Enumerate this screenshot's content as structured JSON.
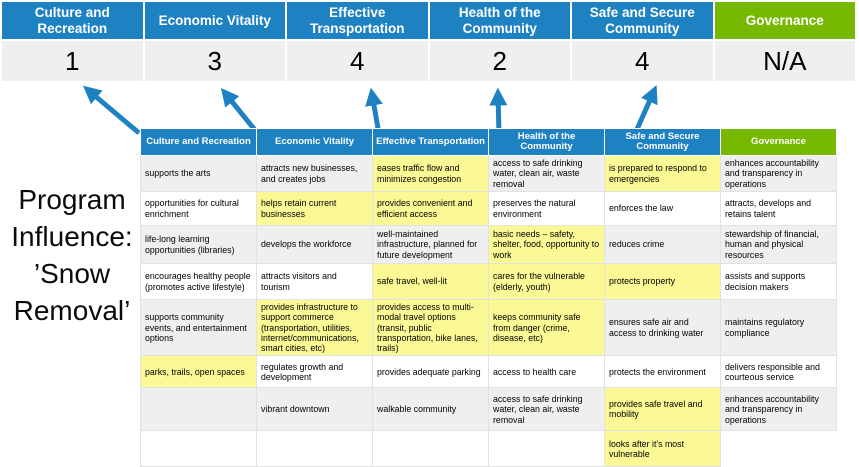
{
  "colors": {
    "header_blue": "#1E82C2",
    "header_green": "#76B900",
    "score_bg": "#EEEFEF",
    "band_gray": "#EFEFEF",
    "highlight_yellow": "#FBF995",
    "arrow_blue": "#1E82C2"
  },
  "program_label": {
    "text": "Program\nInfluence:\n’Snow\nRemoval’"
  },
  "summary": {
    "columns": [
      {
        "label": "Culture and Recreation",
        "score": "1",
        "header_color": "blue"
      },
      {
        "label": "Economic Vitality",
        "score": "3",
        "header_color": "blue"
      },
      {
        "label": "Effective Transportation",
        "score": "4",
        "header_color": "blue"
      },
      {
        "label": "Health of the Community",
        "score": "2",
        "header_color": "blue"
      },
      {
        "label": "Safe and Secure Community",
        "score": "4",
        "header_color": "blue"
      },
      {
        "label": "Governance",
        "score": "N/A",
        "header_color": "green"
      }
    ]
  },
  "arrows": {
    "targets": [
      "Culture and Recreation",
      "Economic Vitality",
      "Effective Transportation",
      "Health of the Community",
      "Safe and Secure Community"
    ]
  },
  "matrix": {
    "headers": [
      {
        "label": "Culture and Recreation",
        "header_color": "blue"
      },
      {
        "label": "Economic Vitality",
        "header_color": "blue"
      },
      {
        "label": "Effective Transportation",
        "header_color": "blue"
      },
      {
        "label": "Health of the Community",
        "header_color": "blue"
      },
      {
        "label": "Safe and Secure Community",
        "header_color": "blue"
      },
      {
        "label": "Governance",
        "header_color": "green"
      }
    ],
    "rows": [
      [
        {
          "text": "supports the arts",
          "highlight": false
        },
        {
          "text": "attracts new businesses, and creates jobs",
          "highlight": false
        },
        {
          "text": "eases traffic flow and minimizes congestion",
          "highlight": true
        },
        {
          "text": "access to safe drinking water, clean air, waste removal",
          "highlight": false
        },
        {
          "text": "is prepared to respond to emergencies",
          "highlight": true
        },
        {
          "text": "enhances accountability and transparency in operations",
          "highlight": false
        }
      ],
      [
        {
          "text": "opportunities for cultural enrichment",
          "highlight": false
        },
        {
          "text": "helps retain current businesses",
          "highlight": true
        },
        {
          "text": "provides convenient and efficient access",
          "highlight": true
        },
        {
          "text": "preserves the natural environment",
          "highlight": false
        },
        {
          "text": "enforces the law",
          "highlight": false
        },
        {
          "text": "attracts, develops and retains talent",
          "highlight": false
        }
      ],
      [
        {
          "text": "life-long learning opportunities (libraries)",
          "highlight": false
        },
        {
          "text": "develops the workforce",
          "highlight": false
        },
        {
          "text": "well-maintained infrastructure, planned for future development",
          "highlight": false
        },
        {
          "text": "basic needs – safety, shelter, food, opportunity to work",
          "highlight": true
        },
        {
          "text": "reduces crime",
          "highlight": false
        },
        {
          "text": "stewardship of financial, human and physical resources",
          "highlight": false
        }
      ],
      [
        {
          "text": "encourages healthy people (promotes active lifestyle)",
          "highlight": false
        },
        {
          "text": "attracts visitors and tourism",
          "highlight": false
        },
        {
          "text": "safe travel, well-lit",
          "highlight": true
        },
        {
          "text": "cares for the vulnerable (elderly, youth)",
          "highlight": true
        },
        {
          "text": "protects property",
          "highlight": true
        },
        {
          "text": "assists and supports decision makers",
          "highlight": false
        }
      ],
      [
        {
          "text": "supports community events, and entertainment options",
          "highlight": false
        },
        {
          "text": "provides infrastructure to support commerce (transportation, utilities, internet/communications, smart cities, etc)",
          "highlight": true
        },
        {
          "text": "provides access to multi-modal travel options (transit, public transportation, bike lanes, trails)",
          "highlight": true
        },
        {
          "text": "keeps community safe from danger (crime, disease, etc)",
          "highlight": true
        },
        {
          "text": "ensures safe air and access to drinking water",
          "highlight": false
        },
        {
          "text": "maintains regulatory compliance",
          "highlight": false
        }
      ],
      [
        {
          "text": "parks, trails, open spaces",
          "highlight": true
        },
        {
          "text": "regulates growth and development",
          "highlight": false
        },
        {
          "text": "provides adequate parking",
          "highlight": false
        },
        {
          "text": "access to health care",
          "highlight": false
        },
        {
          "text": "protects the environment",
          "highlight": false
        },
        {
          "text": "delivers responsible and courteous service",
          "highlight": false
        }
      ],
      [
        {
          "text": "",
          "highlight": false
        },
        {
          "text": "vibrant downtown",
          "highlight": false
        },
        {
          "text": "walkable community",
          "highlight": false
        },
        {
          "text": "access to safe drinking water, clean air, waste removal",
          "highlight": false
        },
        {
          "text": "provides safe travel and mobility",
          "highlight": true
        },
        {
          "text": "enhances accountability and transparency in operations",
          "highlight": false
        }
      ],
      [
        {
          "text": "",
          "highlight": false
        },
        {
          "text": "",
          "highlight": false
        },
        {
          "text": "",
          "highlight": false
        },
        {
          "text": "",
          "highlight": false
        },
        {
          "text": "looks after it's most vulnerable",
          "highlight": true
        },
        {
          "text": "",
          "highlight": false,
          "void": true
        }
      ]
    ]
  }
}
